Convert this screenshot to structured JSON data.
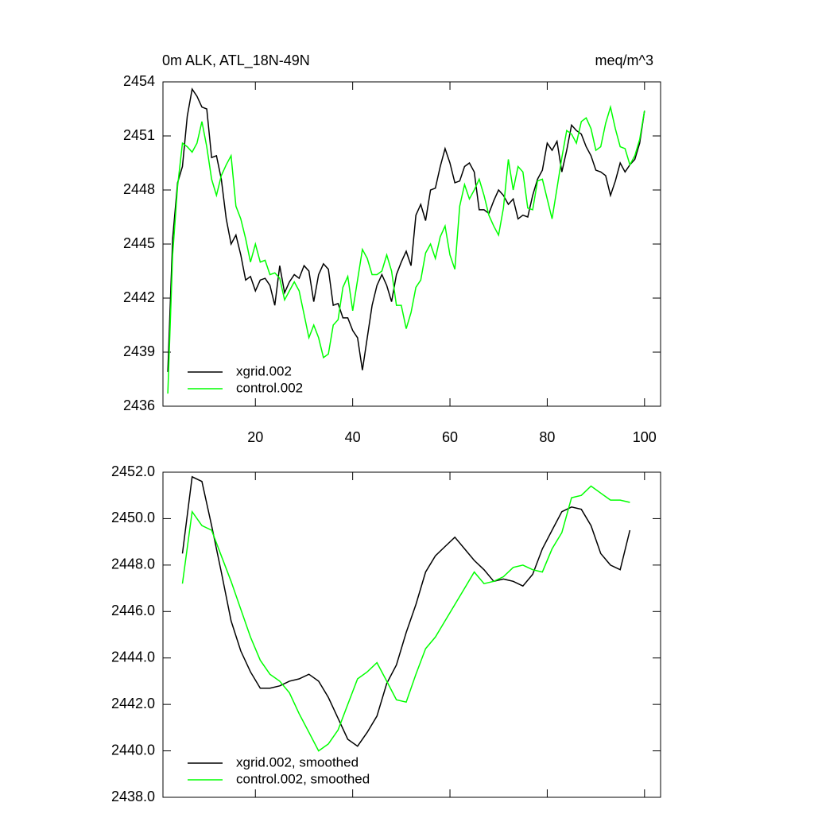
{
  "chart_data": [
    {
      "type": "line",
      "title": "0m ALK, ATL_18N-49N",
      "units_label": "meq/m^3",
      "x": [
        2,
        3,
        4,
        5,
        6,
        7,
        8,
        9,
        10,
        11,
        12,
        13,
        14,
        15,
        16,
        17,
        18,
        19,
        20,
        21,
        22,
        23,
        24,
        25,
        26,
        27,
        28,
        29,
        30,
        31,
        32,
        33,
        34,
        35,
        36,
        37,
        38,
        39,
        40,
        41,
        42,
        43,
        44,
        45,
        46,
        47,
        48,
        49,
        50,
        51,
        52,
        53,
        54,
        55,
        56,
        57,
        58,
        59,
        60,
        61,
        62,
        63,
        64,
        65,
        66,
        67,
        68,
        69,
        70,
        71,
        72,
        73,
        74,
        75,
        76,
        77,
        78,
        79,
        80,
        81,
        82,
        83,
        84,
        85,
        86,
        87,
        88,
        89,
        90,
        91,
        92,
        93,
        94,
        95,
        96,
        97,
        98,
        99,
        100
      ],
      "series": [
        {
          "name": "xgrid.002",
          "color": "#000000",
          "values": [
            2437.9,
            2445.3,
            2448.4,
            2449.3,
            2452.1,
            2453.6,
            2453.2,
            2452.6,
            2452.5,
            2449.8,
            2449.9,
            2448.6,
            2446.4,
            2445.0,
            2445.5,
            2444.4,
            2443.0,
            2443.2,
            2442.4,
            2443.0,
            2443.1,
            2442.7,
            2441.6,
            2443.8,
            2442.3,
            2442.9,
            2443.3,
            2443.1,
            2443.8,
            2443.5,
            2441.8,
            2443.3,
            2443.9,
            2443.6,
            2441.6,
            2441.7,
            2440.9,
            2440.9,
            2440.2,
            2439.8,
            2438.0,
            2439.8,
            2441.6,
            2442.7,
            2443.3,
            2442.7,
            2441.8,
            2443.3,
            2444.0,
            2444.6,
            2443.8,
            2446.6,
            2447.2,
            2446.3,
            2448.0,
            2448.1,
            2449.3,
            2450.3,
            2449.5,
            2448.4,
            2448.5,
            2449.3,
            2449.5,
            2449.0,
            2446.9,
            2446.9,
            2446.7,
            2447.4,
            2448.0,
            2447.7,
            2447.2,
            2447.5,
            2446.4,
            2446.6,
            2446.5,
            2447.7,
            2448.6,
            2449.1,
            2450.6,
            2450.2,
            2450.7,
            2449.0,
            2450.2,
            2451.6,
            2451.3,
            2451.1,
            2450.4,
            2449.9,
            2449.1,
            2449.0,
            2448.8,
            2447.7,
            2448.5,
            2449.5,
            2449.0,
            2449.4,
            2449.7,
            2450.6,
            2452.4
          ]
        },
        {
          "name": "control.002",
          "color": "#00ff00",
          "values": [
            2436.7,
            2444.4,
            2448.2,
            2450.6,
            2450.4,
            2450.1,
            2450.6,
            2451.8,
            2450.4,
            2448.6,
            2447.7,
            2448.8,
            2449.4,
            2449.9,
            2447.1,
            2446.4,
            2445.3,
            2444.0,
            2445.0,
            2444.0,
            2444.1,
            2443.3,
            2443.4,
            2443.1,
            2441.9,
            2442.4,
            2442.9,
            2442.4,
            2441.1,
            2439.8,
            2440.5,
            2439.8,
            2438.7,
            2438.9,
            2440.5,
            2440.8,
            2442.6,
            2443.2,
            2441.3,
            2443.0,
            2444.7,
            2444.2,
            2443.3,
            2443.3,
            2443.5,
            2444.4,
            2443.5,
            2441.6,
            2441.6,
            2440.3,
            2441.2,
            2442.6,
            2443.0,
            2444.5,
            2445.0,
            2444.2,
            2445.4,
            2446.0,
            2444.4,
            2443.6,
            2447.1,
            2448.3,
            2447.5,
            2448.0,
            2448.6,
            2447.7,
            2446.6,
            2446.0,
            2445.5,
            2447.0,
            2449.7,
            2448.0,
            2449.3,
            2449.0,
            2447.0,
            2446.9,
            2448.5,
            2448.6,
            2447.5,
            2446.4,
            2448.1,
            2449.8,
            2451.3,
            2451.1,
            2450.6,
            2451.8,
            2452.0,
            2451.4,
            2450.2,
            2450.4,
            2451.7,
            2452.6,
            2451.4,
            2450.4,
            2450.3,
            2449.4,
            2449.9,
            2450.8,
            2452.4
          ]
        }
      ],
      "xlim": [
        1,
        103.3
      ],
      "xticks": [
        20,
        40,
        60,
        80,
        100
      ],
      "show_xtick_labels": true,
      "ylim": [
        2436,
        2454
      ],
      "yticks": [
        2436,
        2439,
        2442,
        2445,
        2448,
        2451,
        2454
      ],
      "legend": "lower left"
    },
    {
      "type": "line",
      "x": [
        5,
        7,
        9,
        11,
        13,
        15,
        17,
        19,
        21,
        23,
        25,
        27,
        29,
        31,
        33,
        35,
        37,
        39,
        41,
        43,
        45,
        47,
        49,
        51,
        53,
        55,
        57,
        59,
        61,
        63,
        65,
        67,
        69,
        71,
        73,
        75,
        77,
        79,
        81,
        83,
        85,
        87,
        89,
        91,
        93,
        95,
        97
      ],
      "series": [
        {
          "name": "xgrid.002, smoothed",
          "color": "#000000",
          "values": [
            2448.5,
            2451.8,
            2451.6,
            2449.7,
            2447.7,
            2445.6,
            2444.3,
            2443.4,
            2442.7,
            2442.7,
            2442.8,
            2443.0,
            2443.1,
            2443.3,
            2443.0,
            2442.3,
            2441.4,
            2440.5,
            2440.2,
            2440.8,
            2441.5,
            2442.9,
            2443.7,
            2445.1,
            2446.3,
            2447.7,
            2448.4,
            2448.8,
            2449.2,
            2448.7,
            2448.2,
            2447.8,
            2447.3,
            2447.4,
            2447.3,
            2447.1,
            2447.6,
            2448.7,
            2449.5,
            2450.3,
            2450.5,
            2450.4,
            2449.7,
            2448.5,
            2448.0,
            2447.8,
            2449.5
          ]
        },
        {
          "name": "control.002, smoothed",
          "color": "#00ff00",
          "values": [
            2447.2,
            2450.3,
            2449.7,
            2449.5,
            2448.4,
            2447.3,
            2446.1,
            2444.9,
            2443.9,
            2443.3,
            2443.0,
            2442.5,
            2441.6,
            2440.8,
            2440.0,
            2440.3,
            2440.9,
            2442.0,
            2443.1,
            2443.4,
            2443.8,
            2443.0,
            2442.2,
            2442.1,
            2443.3,
            2444.4,
            2444.9,
            2445.6,
            2446.3,
            2447.0,
            2447.7,
            2447.2,
            2447.3,
            2447.5,
            2447.9,
            2448.0,
            2447.8,
            2447.7,
            2448.7,
            2449.4,
            2450.9,
            2451.0,
            2451.4,
            2451.1,
            2450.8,
            2450.8,
            2450.7
          ]
        }
      ],
      "xlim": [
        1,
        103.3
      ],
      "xticks": [
        20,
        40,
        60,
        80,
        100
      ],
      "show_xtick_labels": false,
      "ylim": [
        2438,
        2452
      ],
      "yticks": [
        {
          "value": 2438,
          "label": "2438.0"
        },
        {
          "value": 2440,
          "label": "2440.0"
        },
        {
          "value": 2442,
          "label": "2442.0"
        },
        {
          "value": 2444,
          "label": "2444.0"
        },
        {
          "value": 2446,
          "label": "2446.0"
        },
        {
          "value": 2448,
          "label": "2448.0"
        },
        {
          "value": 2450,
          "label": "2450.0"
        },
        {
          "value": 2452,
          "label": "2452.0"
        }
      ],
      "legend": "lower left"
    }
  ]
}
